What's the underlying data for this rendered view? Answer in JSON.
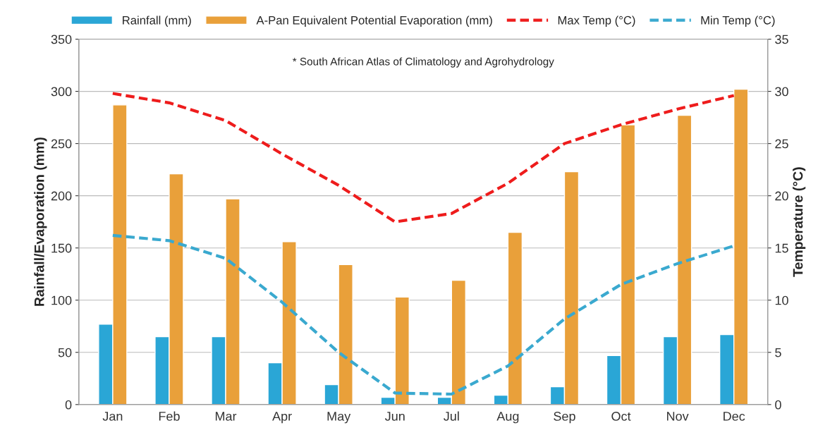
{
  "chart_data": {
    "type": "bar",
    "ylabel": "Rainfall/Evaporation (mm)",
    "y2label": "Temperature (°C)",
    "annotations": [
      "* South African Atlas of Climatology and Agrohydrology"
    ],
    "categories": [
      "Jan",
      "Feb",
      "Mar",
      "Apr",
      "May",
      "Jun",
      "Jul",
      "Aug",
      "Sep",
      "Oct",
      "Nov",
      "Dec"
    ],
    "series": [
      {
        "name": "Rainfall (mm)",
        "color": "#2aa6d6",
        "values": [
          77,
          65,
          65,
          40,
          19,
          7,
          7,
          9,
          17,
          47,
          65,
          67
        ]
      },
      {
        "name": "A-Pan Equivalent Potential Evaporation (mm)",
        "color": "#e9a03a",
        "values": [
          287,
          221,
          197,
          156,
          134,
          103,
          119,
          165,
          223,
          268,
          277,
          302
        ]
      },
      {
        "name": "Max Temp (°C)",
        "type": "line",
        "axis": "y2",
        "line_style": "dashed",
        "color": "#ee1c1c",
        "values": [
          29.8,
          28.9,
          27.2,
          24.0,
          21.0,
          17.5,
          18.3,
          21.2,
          25.0,
          26.8,
          28.3,
          29.6
        ]
      },
      {
        "name": "Min Temp (°C)",
        "type": "line",
        "axis": "y2",
        "line_style": "dashed",
        "color": "#3aa9cf",
        "values": [
          16.2,
          15.7,
          14.0,
          9.8,
          5.0,
          1.1,
          1.0,
          3.7,
          8.2,
          11.5,
          13.5,
          15.2
        ]
      }
    ],
    "ylim": [
      0,
      350
    ],
    "yticks": [
      0,
      50,
      100,
      150,
      200,
      250,
      300,
      350
    ],
    "y2lim": [
      0,
      35
    ],
    "y2ticks": [
      0,
      5,
      10,
      15,
      20,
      25,
      30,
      35
    ],
    "grid": "y",
    "legend": "top",
    "marker": "none"
  }
}
